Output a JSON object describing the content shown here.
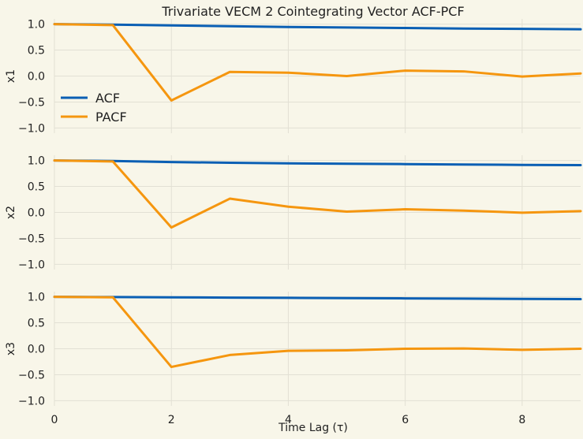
{
  "chart_data": {
    "type": "line",
    "title": "Trivariate VECM 2 Cointegrating Vector ACF-PCF",
    "xlabel": "Time Lag (τ)",
    "xlim": [
      0,
      9
    ],
    "ylim": [
      -1.1,
      1.1
    ],
    "xticks": [
      "0",
      "2",
      "4",
      "6",
      "8"
    ],
    "yticks": [
      "−1.0",
      "−0.5",
      "0.0",
      "0.5",
      "1.0"
    ],
    "grid": true,
    "legend": {
      "placement": "left",
      "subplot": 0,
      "entries": [
        "ACF",
        "PACF"
      ]
    },
    "colors": {
      "ACF": "#0a5fb4",
      "PACF": "#f5960f",
      "background": "#f8f6e9",
      "grid": "#e2e0d4"
    },
    "x": [
      0,
      1,
      2,
      3,
      4,
      5,
      6,
      7,
      8,
      9
    ],
    "panels": [
      {
        "ylabel": "x1",
        "series": [
          {
            "name": "ACF",
            "values": [
              1.0,
              0.99,
              0.975,
              0.96,
              0.945,
              0.935,
              0.925,
              0.915,
              0.908,
              0.9
            ]
          },
          {
            "name": "PACF",
            "values": [
              1.0,
              0.98,
              -0.47,
              0.08,
              0.065,
              0.0,
              0.105,
              0.09,
              -0.01,
              0.05
            ]
          }
        ]
      },
      {
        "ylabel": "x2",
        "series": [
          {
            "name": "ACF",
            "values": [
              1.0,
              0.99,
              0.97,
              0.955,
              0.945,
              0.937,
              0.93,
              0.922,
              0.915,
              0.91
            ]
          },
          {
            "name": "PACF",
            "values": [
              1.0,
              0.98,
              -0.29,
              0.265,
              0.11,
              0.015,
              0.06,
              0.035,
              -0.005,
              0.025
            ]
          }
        ]
      },
      {
        "ylabel": "x3",
        "series": [
          {
            "name": "ACF",
            "values": [
              1.0,
              0.995,
              0.99,
              0.985,
              0.98,
              0.975,
              0.97,
              0.965,
              0.96,
              0.955
            ]
          },
          {
            "name": "PACF",
            "values": [
              1.0,
              0.99,
              -0.35,
              -0.12,
              -0.04,
              -0.03,
              0.0,
              0.005,
              -0.02,
              0.0
            ]
          }
        ]
      }
    ]
  }
}
